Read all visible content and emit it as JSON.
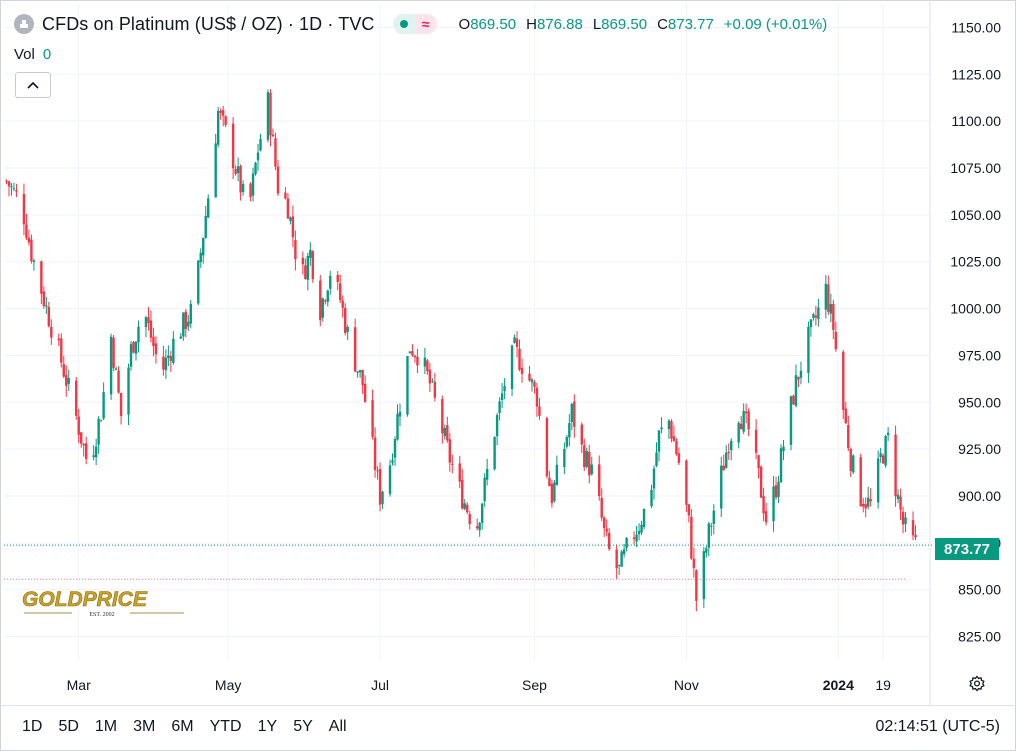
{
  "header": {
    "title": "CFDs on Platinum (US$ / OZ) · 1D · TVC",
    "ohlc": [
      {
        "k": "O",
        "v": "869.50"
      },
      {
        "k": "H",
        "v": "876.88"
      },
      {
        "k": "L",
        "v": "869.50"
      },
      {
        "k": "C",
        "v": "873.77"
      }
    ],
    "change": "+0.09 (+0.01%)",
    "vol_label": "Vol",
    "vol_value": "0"
  },
  "last_price_label": "873.77",
  "ranges": [
    "1D",
    "5D",
    "1M",
    "3M",
    "6M",
    "YTD",
    "1Y",
    "5Y",
    "All"
  ],
  "clock": "02:14:51 (UTC-5)",
  "logo": {
    "text": "GOLDPRICE",
    "sub": "EST. 2002"
  },
  "colors": {
    "up": "#089981",
    "down": "#f23645",
    "grid": "#f0f3fa",
    "axis_text": "#131722"
  },
  "chart_data": {
    "type": "candlestick",
    "title": "CFDs on Platinum (US$ / OZ) · 1D · TVC",
    "y_ticks": [
      825,
      850,
      875,
      900,
      925,
      950,
      975,
      1000,
      1025,
      1050,
      1075,
      1100,
      1125,
      1150
    ],
    "y_tick_labels": [
      "825.00",
      "850.00",
      "875.00",
      "900.00",
      "925.00",
      "950.00",
      "975.00",
      "1000.00",
      "1025.00",
      "1050.00",
      "1075.00",
      "1100.00",
      "1125.00",
      "1150.00"
    ],
    "x_labels": [
      {
        "label": "Mar",
        "day": 29,
        "bold": false
      },
      {
        "label": "May",
        "day": 89,
        "bold": false
      },
      {
        "label": "Jul",
        "day": 150,
        "bold": false
      },
      {
        "label": "Sep",
        "day": 212,
        "bold": false
      },
      {
        "label": "Nov",
        "day": 273,
        "bold": false
      },
      {
        "label": "2024",
        "day": 334,
        "bold": true
      },
      {
        "label": "19",
        "day": 352,
        "bold": false
      }
    ],
    "ylim": [
      812.5,
      1162.5
    ],
    "xlim": [
      -1,
      366
    ],
    "last_price": 873.77,
    "ref_line": 855.6,
    "keypoints": [
      [
        0,
        1068
      ],
      [
        6,
        1056
      ],
      [
        10,
        1030
      ],
      [
        15,
        1005
      ],
      [
        22,
        972
      ],
      [
        28,
        942
      ],
      [
        33,
        915
      ],
      [
        38,
        945
      ],
      [
        42,
        985
      ],
      [
        46,
        943
      ],
      [
        50,
        978
      ],
      [
        55,
        1000
      ],
      [
        62,
        965
      ],
      [
        68,
        985
      ],
      [
        75,
        1000
      ],
      [
        79,
        1040
      ],
      [
        82,
        1070
      ],
      [
        85,
        1105
      ],
      [
        89,
        1090
      ],
      [
        93,
        1070
      ],
      [
        97,
        1050
      ],
      [
        101,
        1085
      ],
      [
        105,
        1110
      ],
      [
        109,
        1065
      ],
      [
        113,
        1055
      ],
      [
        118,
        1015
      ],
      [
        122,
        1030
      ],
      [
        126,
        1000
      ],
      [
        130,
        1020
      ],
      [
        134,
        1005
      ],
      [
        138,
        980
      ],
      [
        143,
        960
      ],
      [
        147,
        925
      ],
      [
        150,
        900
      ],
      [
        154,
        918
      ],
      [
        158,
        950
      ],
      [
        162,
        980
      ],
      [
        166,
        975
      ],
      [
        170,
        960
      ],
      [
        174,
        940
      ],
      [
        178,
        920
      ],
      [
        182,
        903
      ],
      [
        186,
        890
      ],
      [
        189,
        885
      ],
      [
        192,
        905
      ],
      [
        196,
        935
      ],
      [
        200,
        960
      ],
      [
        204,
        978
      ],
      [
        208,
        968
      ],
      [
        213,
        953
      ],
      [
        216,
        920
      ],
      [
        219,
        900
      ],
      [
        223,
        920
      ],
      [
        227,
        945
      ],
      [
        231,
        925
      ],
      [
        236,
        910
      ],
      [
        240,
        880
      ],
      [
        243,
        865
      ],
      [
        246,
        860
      ],
      [
        250,
        875
      ],
      [
        254,
        885
      ],
      [
        258,
        898
      ],
      [
        262,
        932
      ],
      [
        266,
        940
      ],
      [
        270,
        918
      ],
      [
        274,
        885
      ],
      [
        277,
        845
      ],
      [
        279,
        858
      ],
      [
        282,
        880
      ],
      [
        286,
        905
      ],
      [
        290,
        930
      ],
      [
        294,
        945
      ],
      [
        298,
        935
      ],
      [
        302,
        910
      ],
      [
        305,
        888
      ],
      [
        309,
        905
      ],
      [
        313,
        935
      ],
      [
        317,
        960
      ],
      [
        321,
        980
      ],
      [
        325,
        995
      ],
      [
        329,
        1010
      ],
      [
        332,
        990
      ],
      [
        335,
        955
      ],
      [
        339,
        920
      ],
      [
        343,
        900
      ],
      [
        347,
        895
      ],
      [
        351,
        920
      ],
      [
        354,
        930
      ],
      [
        357,
        905
      ],
      [
        360,
        885
      ],
      [
        363,
        876
      ],
      [
        365,
        873.77
      ]
    ]
  }
}
